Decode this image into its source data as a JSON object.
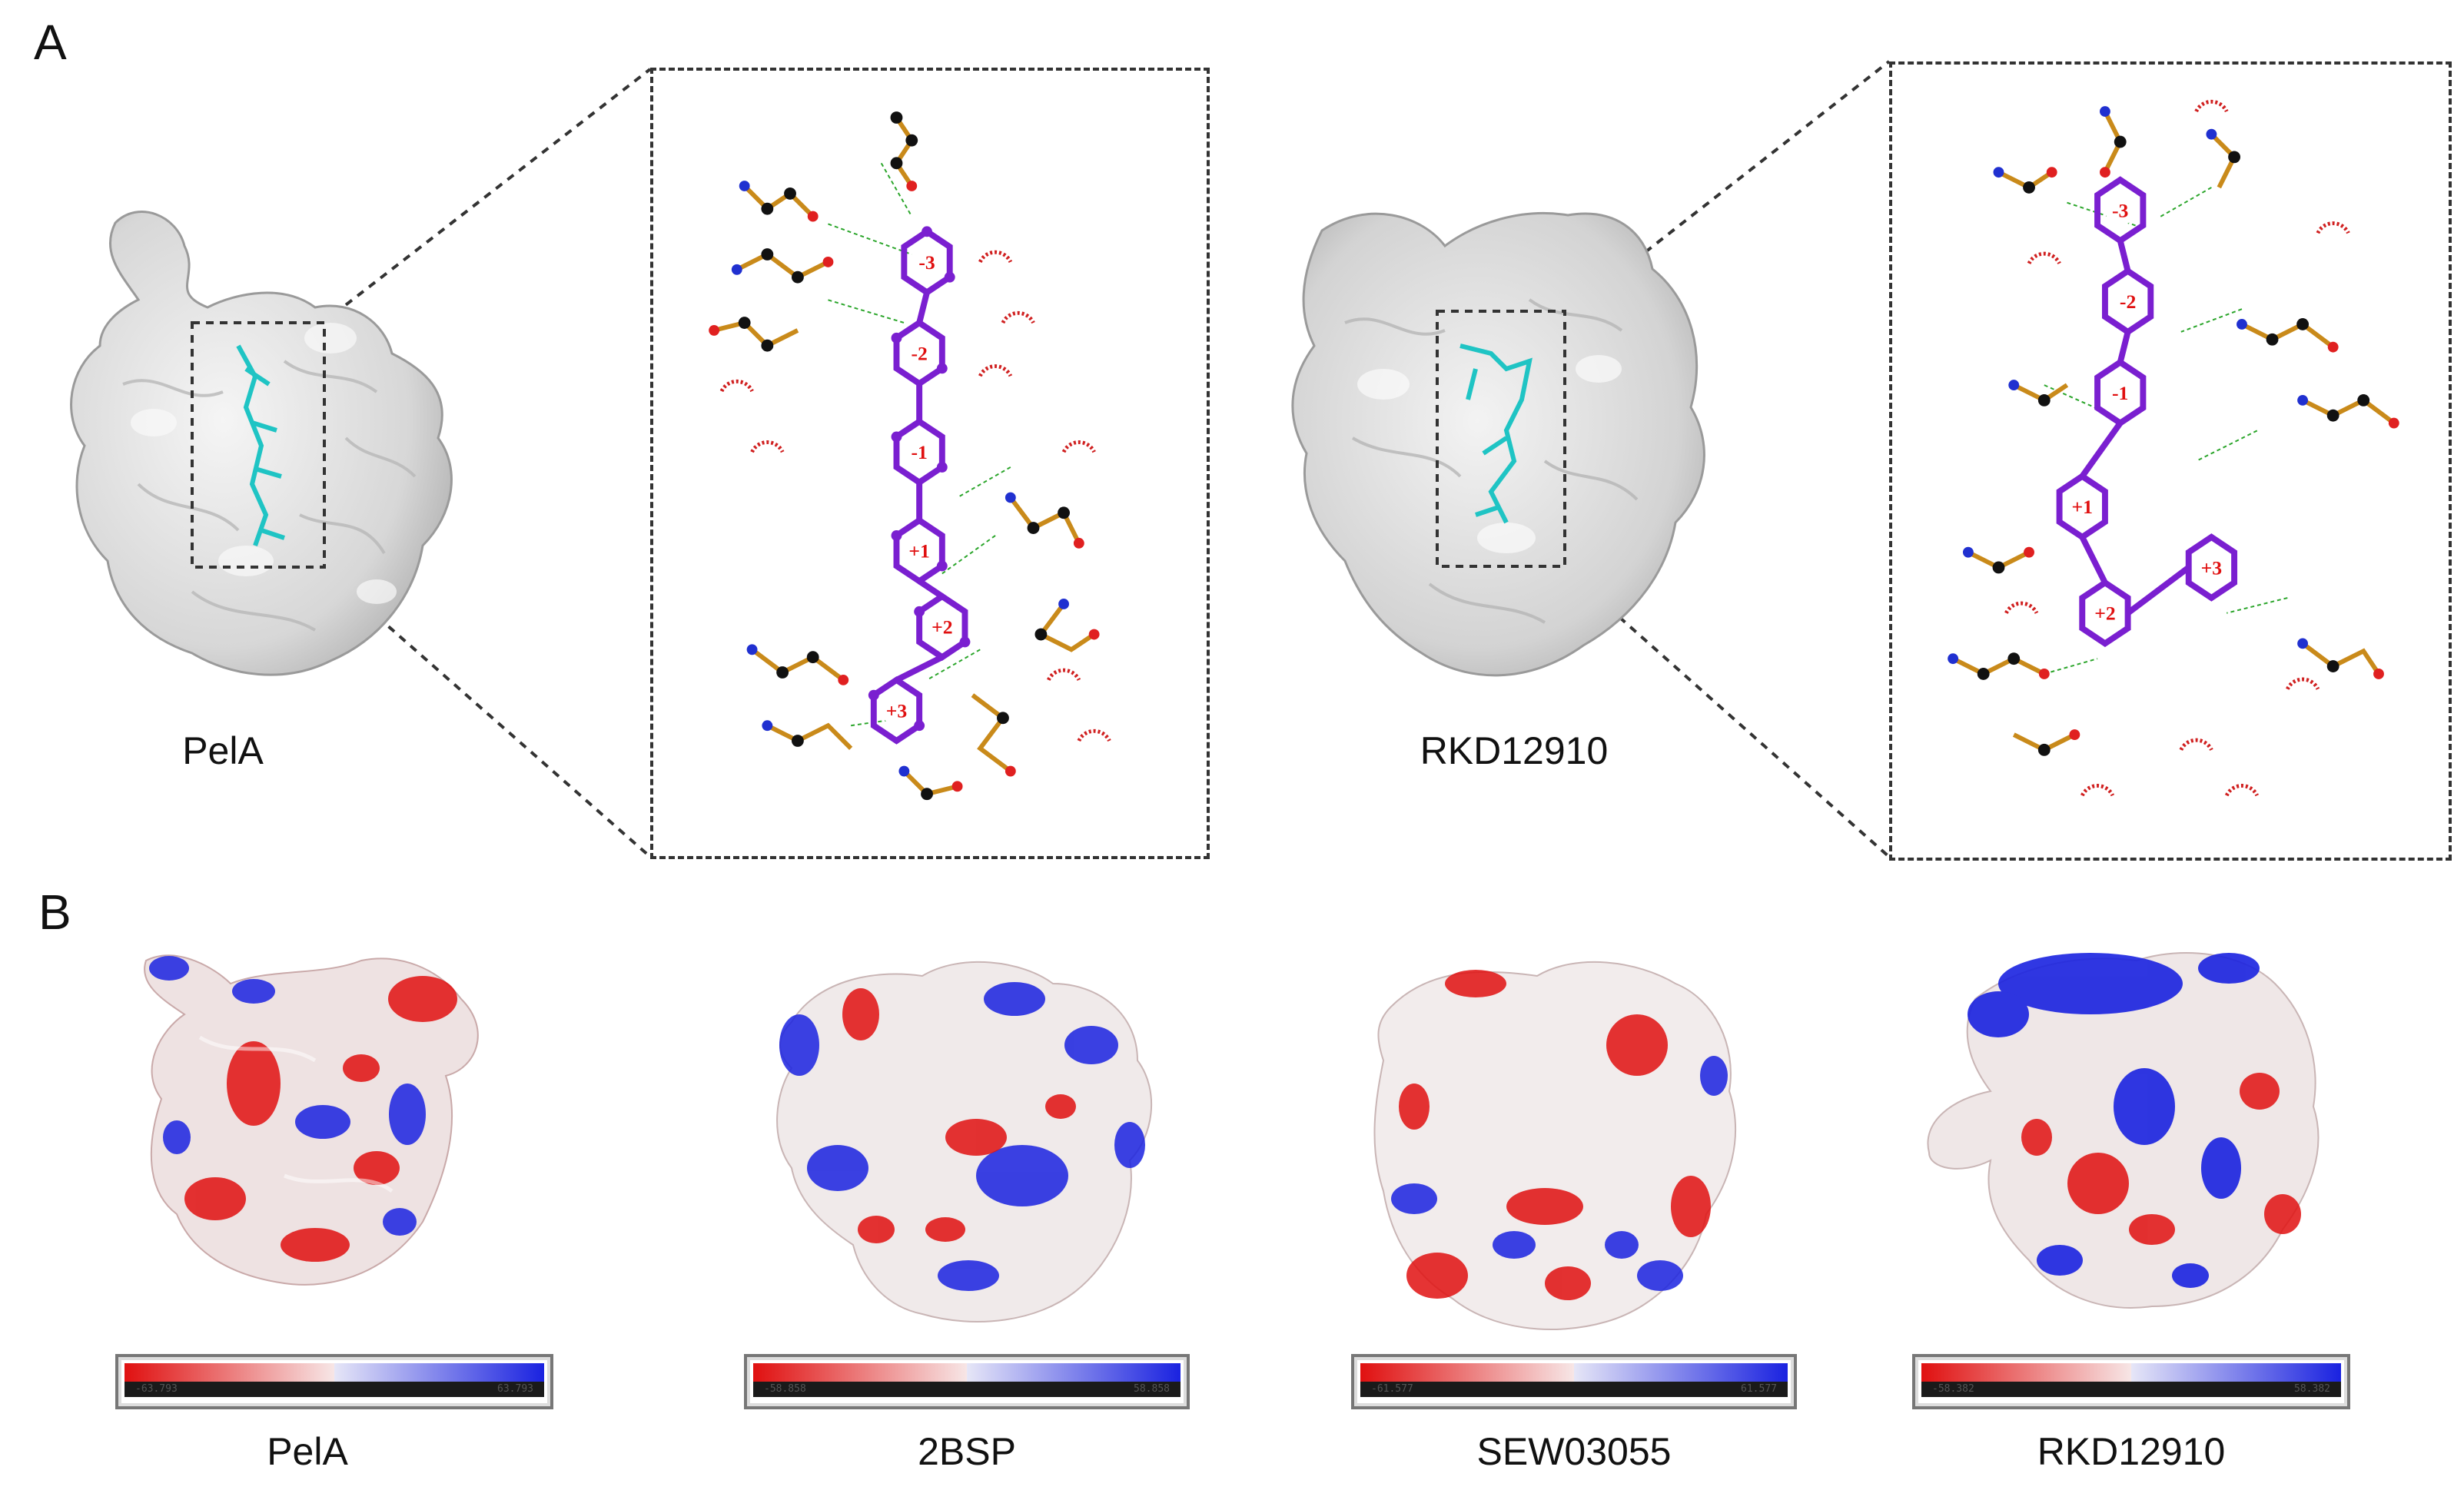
{
  "panels": {
    "a_label": "A",
    "b_label": "B"
  },
  "panel_a": {
    "left_protein_label": "PelA",
    "right_protein_label": "RKD12910",
    "left_sugar_rings": [
      "-3",
      "-2",
      "-1",
      "+1",
      "+2",
      "+3"
    ],
    "right_sugar_rings": [
      "-3",
      "-2",
      "-1",
      "+1",
      "+2",
      "+3"
    ]
  },
  "panel_b": {
    "structures": [
      {
        "label": "PelA",
        "colorbar_min": "-63.793",
        "colorbar_max": "63.793"
      },
      {
        "label": "2BSP",
        "colorbar_min": "-58.858",
        "colorbar_max": "58.858"
      },
      {
        "label": "SEW03055",
        "colorbar_min": "-61.577",
        "colorbar_max": "61.577"
      },
      {
        "label": "RKD12910",
        "colorbar_min": "-58.382",
        "colorbar_max": "58.382"
      }
    ]
  },
  "colors": {
    "ring_purple": "#7a1fd0",
    "ring_label_red": "#e01010",
    "carbon_black": "#111111",
    "bond_orange": "#c98a1a",
    "oxygen_red": "#e02020",
    "nitrogen_blue": "#2030d0",
    "hbond_green": "#2aa52a",
    "ligand_cyan": "#1fc4c4",
    "negative_red": "#e01010",
    "positive_blue": "#1a22e0"
  }
}
